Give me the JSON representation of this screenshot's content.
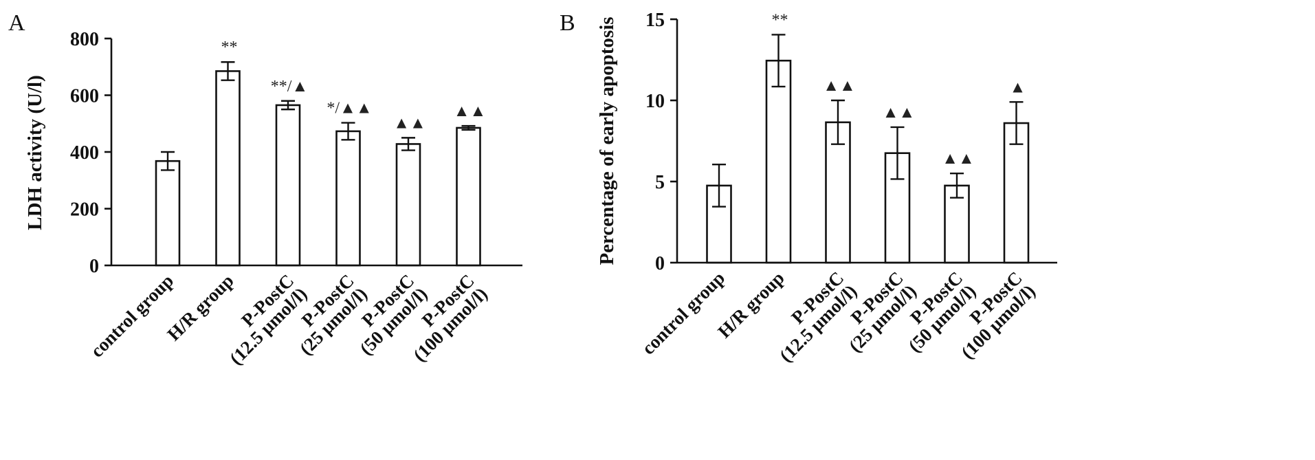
{
  "chart_data": [
    {
      "panel_letter": "A",
      "type": "bar",
      "ylabel": "LDH activity (U/l)",
      "ylim": [
        0,
        800
      ],
      "yticks": [
        0,
        200,
        400,
        600,
        800
      ],
      "categories": [
        [
          "control group"
        ],
        [
          "H/R group"
        ],
        [
          "P-PostC",
          "(12.5 μmol/l)"
        ],
        [
          "P-PostC",
          "(25 μmol/l)"
        ],
        [
          "P-PostC",
          "(50 μmol/l)"
        ],
        [
          "P-PostC",
          "(100 μmol/l)"
        ]
      ],
      "values": [
        368,
        685,
        565,
        473,
        428,
        485
      ],
      "errors": [
        32,
        32,
        15,
        30,
        22,
        7
      ],
      "significance": [
        "",
        "**",
        "**/▲",
        "*/▲▲",
        "▲▲",
        "▲▲"
      ]
    },
    {
      "panel_letter": "B",
      "type": "bar",
      "ylabel": "Percentage of early apoptosis",
      "ylim": [
        0,
        15
      ],
      "yticks": [
        0,
        5,
        10,
        15
      ],
      "categories": [
        [
          "control group"
        ],
        [
          "H/R group"
        ],
        [
          "P-PostC",
          "(12.5 μmol/l)"
        ],
        [
          "P-PostC",
          "(25 μmol/l)"
        ],
        [
          "P-PostC",
          "(50 μmol/l)"
        ],
        [
          "P-PostC",
          "(100 μmol/l)"
        ]
      ],
      "values": [
        4.75,
        12.45,
        8.65,
        6.75,
        4.75,
        8.6
      ],
      "errors": [
        1.3,
        1.6,
        1.35,
        1.6,
        0.75,
        1.3
      ],
      "significance": [
        "",
        "**",
        "▲▲",
        "▲▲",
        "▲▲",
        "▲"
      ]
    }
  ]
}
